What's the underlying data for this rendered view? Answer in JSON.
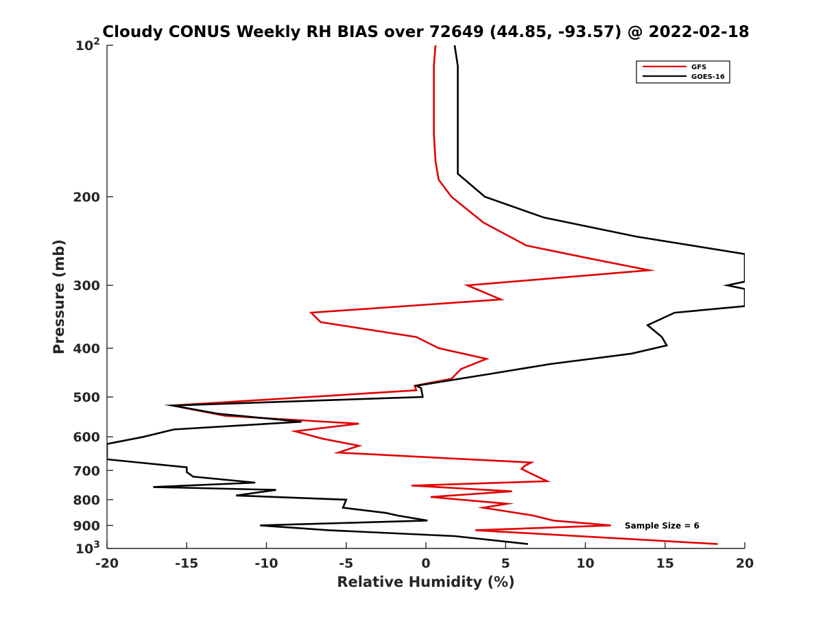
{
  "chart_data": {
    "type": "line",
    "title": "Cloudy CONUS Weekly RH BIAS over 72649 (44.85, -93.57) @ 2022-02-18",
    "xlabel": "Relative Humidity (%)",
    "ylabel": "Pressure (mb)",
    "xlim": [
      -20,
      20
    ],
    "ylim": [
      100,
      1000
    ],
    "y_scale": "log",
    "y_reversed": true,
    "grid": false,
    "legend_position": "top-right",
    "x_ticks": [
      -20,
      -15,
      -10,
      -5,
      0,
      5,
      10,
      15,
      20
    ],
    "x_tick_labels": [
      "-20",
      "-15",
      "-10",
      "-5",
      "0",
      "5",
      "10",
      "15",
      "20"
    ],
    "y_ticks": [
      100,
      200,
      300,
      400,
      500,
      600,
      700,
      800,
      900,
      1000
    ],
    "y_tick_labels": [
      {
        "base": "10",
        "sup": "2"
      },
      {
        "base": "200",
        "sup": ""
      },
      {
        "base": "300",
        "sup": ""
      },
      {
        "base": "400",
        "sup": ""
      },
      {
        "base": "500",
        "sup": ""
      },
      {
        "base": "600",
        "sup": ""
      },
      {
        "base": "700",
        "sup": ""
      },
      {
        "base": "800",
        "sup": ""
      },
      {
        "base": "900",
        "sup": ""
      },
      {
        "base": "10",
        "sup": "3"
      }
    ],
    "annotation": "Sample Size = 6",
    "series": [
      {
        "name": "GFS",
        "color": "#e00000",
        "points": [
          [
            0.6,
            100
          ],
          [
            0.5,
            110
          ],
          [
            0.5,
            125
          ],
          [
            0.5,
            150
          ],
          [
            0.6,
            170
          ],
          [
            0.8,
            185
          ],
          [
            1.6,
            200
          ],
          [
            3.6,
            225
          ],
          [
            6.3,
            250
          ],
          [
            10.2,
            265
          ],
          [
            14.0,
            280
          ],
          [
            2.6,
            300
          ],
          [
            4.7,
            320
          ],
          [
            -7.2,
            340
          ],
          [
            -6.6,
            355
          ],
          [
            -0.6,
            380
          ],
          [
            0.8,
            400
          ],
          [
            3.8,
            420
          ],
          [
            2.2,
            440
          ],
          [
            1.6,
            460
          ],
          [
            -0.7,
            475
          ],
          [
            -0.6,
            485
          ],
          [
            -15.9,
            520
          ],
          [
            -12.6,
            545
          ],
          [
            -4.2,
            565
          ],
          [
            -8.2,
            585
          ],
          [
            -6.5,
            605
          ],
          [
            -4.2,
            625
          ],
          [
            -5.5,
            645
          ],
          [
            6.6,
            675
          ],
          [
            6.2,
            685
          ],
          [
            6.0,
            695
          ],
          [
            6.4,
            705
          ],
          [
            7.6,
            735
          ],
          [
            -0.9,
            750
          ],
          [
            5.4,
            770
          ],
          [
            0.3,
            790
          ],
          [
            5.1,
            815
          ],
          [
            3.6,
            830
          ],
          [
            6.7,
            860
          ],
          [
            8.0,
            880
          ],
          [
            11.6,
            900
          ],
          [
            3.1,
            920
          ],
          [
            18.3,
            980
          ]
        ]
      },
      {
        "name": "GOES-16",
        "color": "#000000",
        "points": [
          [
            1.8,
            100
          ],
          [
            2.0,
            110
          ],
          [
            2.0,
            125
          ],
          [
            2.0,
            150
          ],
          [
            2.0,
            180
          ],
          [
            3.7,
            200
          ],
          [
            7.4,
            220
          ],
          [
            13.2,
            240
          ],
          [
            20.0,
            260
          ],
          [
            20.0,
            295
          ],
          [
            18.9,
            300
          ],
          [
            20.0,
            305
          ],
          [
            20.0,
            330
          ],
          [
            15.6,
            340
          ],
          [
            13.9,
            360
          ],
          [
            14.8,
            380
          ],
          [
            15.1,
            395
          ],
          [
            12.9,
            410
          ],
          [
            7.8,
            430
          ],
          [
            4.0,
            450
          ],
          [
            -0.6,
            475
          ],
          [
            -0.3,
            480
          ],
          [
            -0.2,
            500
          ],
          [
            -15.9,
            520
          ],
          [
            -13.0,
            540
          ],
          [
            -7.8,
            560
          ],
          [
            -15.8,
            580
          ],
          [
            -17.7,
            600
          ],
          [
            -20.0,
            620
          ],
          [
            -20.0,
            665
          ],
          [
            -15.0,
            690
          ],
          [
            -15.0,
            705
          ],
          [
            -14.6,
            720
          ],
          [
            -10.7,
            740
          ],
          [
            -17.1,
            755
          ],
          [
            -9.4,
            765
          ],
          [
            -11.9,
            785
          ],
          [
            -5.0,
            800
          ],
          [
            -5.2,
            830
          ],
          [
            -2.5,
            850
          ],
          [
            -1.8,
            860
          ],
          [
            0.1,
            880
          ],
          [
            -10.4,
            900
          ],
          [
            -6.1,
            920
          ],
          [
            1.8,
            945
          ],
          [
            6.4,
            980
          ]
        ]
      }
    ]
  }
}
